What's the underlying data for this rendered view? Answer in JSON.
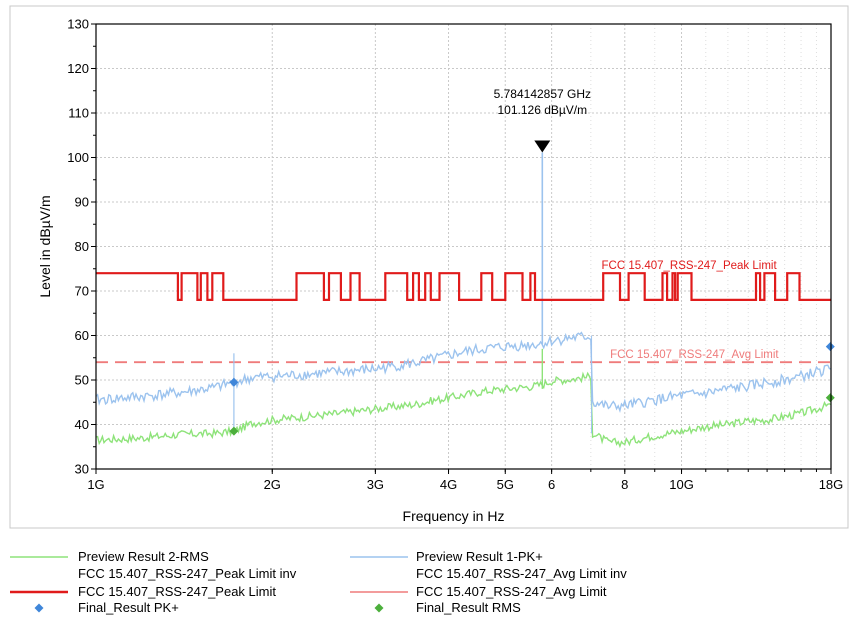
{
  "chart_data": {
    "type": "line",
    "xlabel": "Frequency in Hz",
    "ylabel": "Level in dBµV/m",
    "x_scale": "log",
    "xlim_hz": [
      1000000000,
      18000000000
    ],
    "ylim": [
      30,
      130
    ],
    "grid": true,
    "x_ticks": [
      {
        "hz": 1000000000,
        "label": "1G"
      },
      {
        "hz": 2000000000,
        "label": "2G"
      },
      {
        "hz": 3000000000,
        "label": "3G"
      },
      {
        "hz": 4000000000,
        "label": "4G"
      },
      {
        "hz": 5000000000,
        "label": "5G"
      },
      {
        "hz": 6000000000,
        "label": "6"
      },
      {
        "hz": 8000000000,
        "label": "8"
      },
      {
        "hz": 10000000000,
        "label": "10G"
      },
      {
        "hz": 18000000000,
        "label": "18G"
      }
    ],
    "y_ticks": [
      30,
      40,
      50,
      60,
      70,
      80,
      90,
      100,
      110,
      120,
      130
    ],
    "marker": {
      "freq_hz": 5784142857,
      "level": 101.126,
      "label_line1": "5.784142857 GHz",
      "label_line2": "101.126 dBµV/m"
    },
    "peak_limit_label": "FCC 15.407_RSS-247_Peak Limit",
    "avg_limit_label": "FCC 15.407_RSS-247_Avg Limit",
    "series": [
      {
        "name": "Preview Result 1-PK+",
        "color": "#9cc3ee",
        "points": [
          [
            1.0,
            45.5
          ],
          [
            1.2,
            46.3
          ],
          [
            1.4,
            47.2
          ],
          [
            1.6,
            48.3
          ],
          [
            1.72,
            49.5
          ],
          [
            1.85,
            50.5
          ],
          [
            2.0,
            50.8
          ],
          [
            2.3,
            51.3
          ],
          [
            2.6,
            51.8
          ],
          [
            3.0,
            52.5
          ],
          [
            3.5,
            53.8
          ],
          [
            3.8,
            54.8
          ],
          [
            4.2,
            56.2
          ],
          [
            4.6,
            57.0
          ],
          [
            5.0,
            57.5
          ],
          [
            5.5,
            57.9
          ],
          [
            5.78,
            58.2
          ],
          [
            6.0,
            58.8
          ],
          [
            6.5,
            59.5
          ],
          [
            7.0,
            59.8
          ],
          [
            7.05,
            45.0
          ],
          [
            7.5,
            44.0
          ],
          [
            8.0,
            44.2
          ],
          [
            8.5,
            44.8
          ],
          [
            9.0,
            45.5
          ],
          [
            10.0,
            46.5
          ],
          [
            11.0,
            47.0
          ],
          [
            12.0,
            48.0
          ],
          [
            13.0,
            48.5
          ],
          [
            14.0,
            49.5
          ],
          [
            15.0,
            50.0
          ],
          [
            16.0,
            50.8
          ],
          [
            17.0,
            51.8
          ],
          [
            18.0,
            52.5
          ]
        ]
      },
      {
        "name": "Preview Result 2-RMS",
        "color": "#8ee37a",
        "points": [
          [
            1.0,
            36.5
          ],
          [
            1.2,
            37.0
          ],
          [
            1.4,
            37.8
          ],
          [
            1.6,
            38.0
          ],
          [
            1.72,
            38.5
          ],
          [
            1.85,
            40.3
          ],
          [
            2.0,
            41.0
          ],
          [
            2.3,
            41.8
          ],
          [
            2.6,
            42.5
          ],
          [
            3.0,
            43.5
          ],
          [
            3.5,
            44.5
          ],
          [
            3.8,
            45.5
          ],
          [
            4.2,
            46.5
          ],
          [
            4.6,
            47.5
          ],
          [
            5.0,
            48.0
          ],
          [
            5.5,
            48.5
          ],
          [
            5.78,
            49.0
          ],
          [
            6.0,
            49.8
          ],
          [
            6.5,
            50.2
          ],
          [
            7.0,
            50.8
          ],
          [
            7.05,
            38.0
          ],
          [
            7.5,
            36.0
          ],
          [
            8.0,
            36.0
          ],
          [
            8.5,
            36.8
          ],
          [
            9.0,
            37.5
          ],
          [
            10.0,
            38.5
          ],
          [
            11.0,
            39.5
          ],
          [
            12.0,
            40.0
          ],
          [
            13.0,
            40.8
          ],
          [
            14.0,
            41.0
          ],
          [
            15.0,
            41.8
          ],
          [
            16.0,
            42.5
          ],
          [
            17.0,
            43.5
          ],
          [
            18.0,
            44.5
          ]
        ]
      },
      {
        "name": "FCC 15.407_RSS-247_Peak Limit",
        "color": "#e01b1b",
        "points": [
          [
            1.0,
            74
          ],
          [
            1.38,
            74
          ],
          [
            1.38,
            68
          ],
          [
            1.4,
            68
          ],
          [
            1.4,
            74
          ],
          [
            1.49,
            74
          ],
          [
            1.49,
            68
          ],
          [
            1.51,
            68
          ],
          [
            1.51,
            74
          ],
          [
            1.55,
            74
          ],
          [
            1.55,
            68
          ],
          [
            1.58,
            68
          ],
          [
            1.58,
            74
          ],
          [
            1.65,
            74
          ],
          [
            1.65,
            68
          ],
          [
            2.2,
            68
          ],
          [
            2.2,
            74
          ],
          [
            2.45,
            74
          ],
          [
            2.45,
            68
          ],
          [
            2.5,
            68
          ],
          [
            2.5,
            74
          ],
          [
            2.62,
            74
          ],
          [
            2.62,
            68
          ],
          [
            2.72,
            68
          ],
          [
            2.72,
            74
          ],
          [
            2.82,
            74
          ],
          [
            2.82,
            68
          ],
          [
            3.12,
            68
          ],
          [
            3.12,
            74
          ],
          [
            3.4,
            74
          ],
          [
            3.4,
            68
          ],
          [
            3.48,
            68
          ],
          [
            3.48,
            74
          ],
          [
            3.56,
            74
          ],
          [
            3.56,
            68
          ],
          [
            3.65,
            68
          ],
          [
            3.65,
            74
          ],
          [
            3.73,
            74
          ],
          [
            3.73,
            68
          ],
          [
            3.86,
            68
          ],
          [
            3.86,
            74
          ],
          [
            4.17,
            74
          ],
          [
            4.17,
            68
          ],
          [
            4.55,
            68
          ],
          [
            4.55,
            74
          ],
          [
            4.75,
            74
          ],
          [
            4.75,
            68
          ],
          [
            5.0,
            68
          ],
          [
            5.0,
            74
          ],
          [
            5.35,
            74
          ],
          [
            5.35,
            68
          ],
          [
            5.52,
            68
          ],
          [
            5.52,
            74
          ],
          [
            5.62,
            74
          ],
          [
            5.62,
            68
          ],
          [
            7.35,
            68
          ],
          [
            7.35,
            74
          ],
          [
            7.85,
            74
          ],
          [
            7.85,
            68
          ],
          [
            8.12,
            68
          ],
          [
            8.12,
            74
          ],
          [
            8.65,
            74
          ],
          [
            8.65,
            68
          ],
          [
            9.28,
            68
          ],
          [
            9.28,
            74
          ],
          [
            9.45,
            74
          ],
          [
            9.45,
            68
          ],
          [
            9.65,
            68
          ],
          [
            9.65,
            74
          ],
          [
            9.75,
            74
          ],
          [
            9.75,
            68
          ],
          [
            9.85,
            68
          ],
          [
            9.85,
            74
          ],
          [
            10.4,
            74
          ],
          [
            10.4,
            68
          ],
          [
            13.4,
            68
          ],
          [
            13.4,
            74
          ],
          [
            13.62,
            74
          ],
          [
            13.62,
            68
          ],
          [
            13.85,
            68
          ],
          [
            13.85,
            74
          ],
          [
            14.45,
            74
          ],
          [
            14.45,
            68
          ],
          [
            15.15,
            68
          ],
          [
            15.15,
            74
          ],
          [
            15.9,
            74
          ],
          [
            15.9,
            68
          ],
          [
            18.0,
            68
          ]
        ]
      },
      {
        "name": "FCC 15.407_RSS-247_Avg Limit",
        "color": "#ef7b7b",
        "points": [
          [
            1.0,
            54
          ],
          [
            18.0,
            54
          ]
        ]
      },
      {
        "name": "Final_Result PK+",
        "color": "#3f86d9",
        "points": [
          [
            1.72,
            49.5
          ],
          [
            17.95,
            57.5
          ]
        ]
      },
      {
        "name": "Final_Result RMS",
        "color": "#4caf3c",
        "points": [
          [
            1.72,
            38.5
          ],
          [
            17.95,
            46.0
          ]
        ]
      }
    ]
  },
  "legend": {
    "items": [
      {
        "label": "Preview Result 2-RMS",
        "kind": "line",
        "color": "#8ee37a"
      },
      {
        "label": "Preview Result 1-PK+",
        "kind": "line",
        "color": "#9cc3ee"
      },
      {
        "label": "FCC 15.407_RSS-247_Peak Limit inv",
        "kind": "none",
        "color": ""
      },
      {
        "label": "FCC 15.407_RSS-247_Avg Limit inv",
        "kind": "none",
        "color": ""
      },
      {
        "label": "FCC 15.407_RSS-247_Peak Limit",
        "kind": "thick",
        "color": "#e01b1b"
      },
      {
        "label": "FCC 15.407_RSS-247_Avg Limit",
        "kind": "line",
        "color": "#ef7b7b"
      },
      {
        "label": "Final_Result PK+",
        "kind": "diamond",
        "color": "#3f86d9"
      },
      {
        "label": "Final_Result RMS",
        "kind": "diamond",
        "color": "#4caf3c"
      }
    ]
  }
}
